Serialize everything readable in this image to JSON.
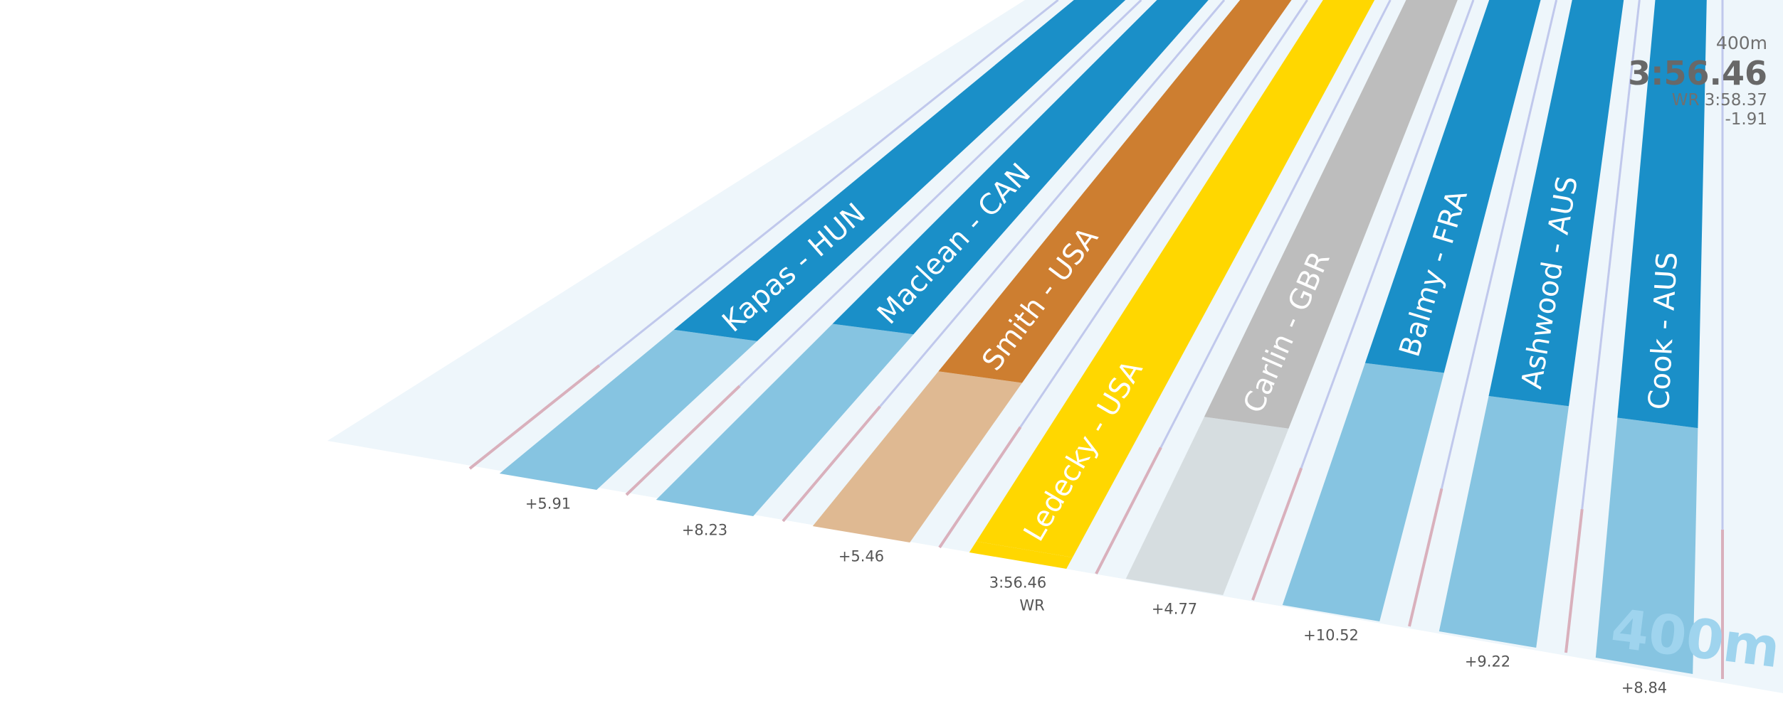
{
  "event": {
    "distance": "400m",
    "winning_time": "3:56.46",
    "wr_label": "WR 3:58.37",
    "wr_diff": "-1.91",
    "finish_label": "400m"
  },
  "colors": {
    "pool_bg": "#eef6fb",
    "lane_blue": "#1a8fc8",
    "lane_blue_light": "#86c4e1",
    "gold": "#ffd700",
    "silver": "#bdbdbd",
    "silver_light": "#d6dde0",
    "bronze": "#cd7e30",
    "bronze_light": "#dfb992",
    "lane_line_pink": "#d9b0bc",
    "lane_line_blue": "#c0c8ec",
    "lane_line_yellow": "#f0ecc0"
  },
  "chart_data": {
    "type": "bar",
    "title": "",
    "xlabel": "",
    "ylabel": "",
    "categories": [
      "Kapas - HUN",
      "Maclean - CAN",
      "Smith - USA",
      "Ledecky - USA",
      "Carlin - GBR",
      "Balmy - FRA",
      "Ashwood - AUS",
      "Cook - AUS"
    ],
    "series": [
      {
        "values": [
          5.91,
          8.23,
          5.46,
          0,
          4.77,
          10.52,
          9.22,
          8.84
        ]
      }
    ],
    "value_labels": [
      "+5.91",
      "+8.23",
      "+5.46",
      "3:56.46",
      "+4.77",
      "+10.52",
      "+9.22",
      "+8.84"
    ],
    "winner_note": "WR",
    "medals": [
      "none",
      "none",
      "bronze",
      "gold",
      "silver",
      "none",
      "none",
      "none"
    ]
  }
}
